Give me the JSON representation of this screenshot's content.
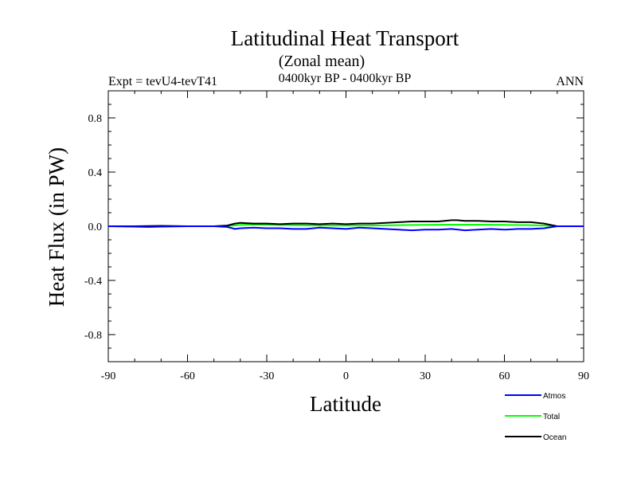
{
  "chart_data": {
    "type": "line",
    "title": "Latitudinal Heat Transport",
    "subtitle": "(Zonal mean)",
    "period": "0400kyr BP - 0400kyr BP",
    "experiment": "Expt = tevU4-tevT41",
    "season": "ANN",
    "xlabel": "Latitude",
    "ylabel": "Heat Flux (in PW)",
    "xlim": [
      -90,
      90
    ],
    "ylim": [
      -1,
      1
    ],
    "x_ticks": [
      -90,
      -60,
      -30,
      0,
      30,
      60,
      90
    ],
    "x_tick_labels": [
      "-90",
      "-60",
      "-30",
      "0",
      "30",
      "60",
      "90"
    ],
    "y_ticks": [
      -0.8,
      -0.4,
      0.0,
      0.4,
      0.8
    ],
    "y_tick_labels": [
      "-0.8",
      "-0.4",
      "0.0",
      "0.4",
      "0.8"
    ],
    "grid": false,
    "legend_position": "bottom-right",
    "series": [
      {
        "name": "Atmos",
        "color": "#0000ff",
        "x": [
          -90,
          -80,
          -75,
          -70,
          -60,
          -50,
          -45,
          -42,
          -40,
          -35,
          -30,
          -25,
          -20,
          -15,
          -10,
          -5,
          0,
          5,
          10,
          15,
          20,
          25,
          30,
          35,
          40,
          45,
          50,
          55,
          60,
          65,
          70,
          75,
          80,
          85,
          90
        ],
        "y": [
          0.0,
          -0.003,
          -0.005,
          -0.003,
          0.0,
          0.0,
          -0.005,
          -0.02,
          -0.015,
          -0.01,
          -0.015,
          -0.015,
          -0.02,
          -0.02,
          -0.01,
          -0.015,
          -0.02,
          -0.01,
          -0.015,
          -0.02,
          -0.025,
          -0.03,
          -0.025,
          -0.025,
          -0.02,
          -0.03,
          -0.025,
          -0.02,
          -0.025,
          -0.02,
          -0.02,
          -0.015,
          0.0,
          0.0,
          0.0
        ]
      },
      {
        "name": "Total",
        "color": "#00ff00",
        "x": [
          -90,
          -80,
          -70,
          -60,
          -50,
          -45,
          -40,
          -35,
          -30,
          -20,
          -10,
          0,
          10,
          20,
          30,
          40,
          50,
          60,
          70,
          75,
          80,
          85,
          90
        ],
        "y": [
          0.0,
          0.0,
          0.0,
          0.0,
          0.0,
          0.002,
          0.01,
          0.012,
          0.01,
          0.008,
          0.005,
          0.005,
          0.005,
          0.008,
          0.01,
          0.012,
          0.012,
          0.01,
          0.008,
          0.005,
          0.0,
          0.0,
          0.0
        ]
      },
      {
        "name": "Ocean",
        "color": "#000000",
        "x": [
          -90,
          -80,
          -70,
          -60,
          -50,
          -45,
          -42,
          -40,
          -35,
          -30,
          -25,
          -20,
          -15,
          -10,
          -5,
          0,
          5,
          10,
          15,
          20,
          25,
          30,
          35,
          40,
          42,
          45,
          50,
          55,
          60,
          65,
          70,
          75,
          80,
          85,
          90
        ],
        "y": [
          0.0,
          0.0,
          0.003,
          0.0,
          0.0,
          0.005,
          0.02,
          0.025,
          0.02,
          0.02,
          0.015,
          0.02,
          0.02,
          0.015,
          0.02,
          0.015,
          0.02,
          0.02,
          0.025,
          0.03,
          0.035,
          0.035,
          0.035,
          0.045,
          0.045,
          0.04,
          0.04,
          0.035,
          0.035,
          0.03,
          0.03,
          0.02,
          0.0,
          0.0,
          0.0
        ]
      }
    ]
  }
}
